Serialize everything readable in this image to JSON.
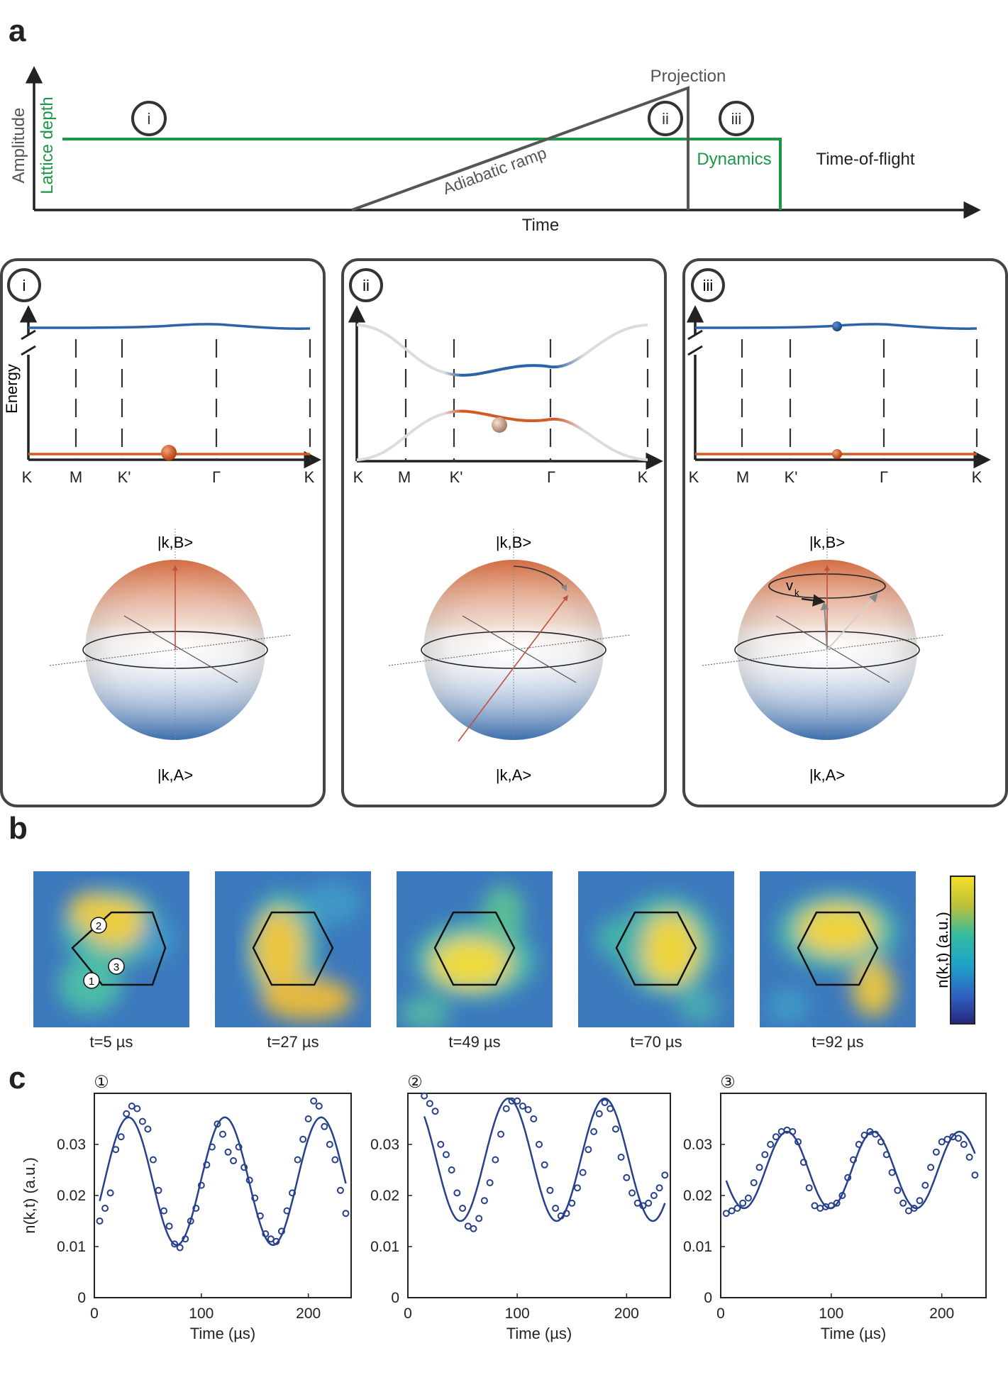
{
  "panel_labels": {
    "a": "a",
    "b": "b",
    "c": "c"
  },
  "sequence": {
    "y_label_amplitude": "Amplitude",
    "y_label_lattice": "Lattice depth",
    "x_label": "Time",
    "projection": "Projection",
    "ramp": "Adiabatic ramp",
    "dynamics": "Dynamics",
    "tof": "Time-of-flight",
    "steps": [
      "i",
      "ii",
      "iii"
    ],
    "colors": {
      "lattice": "#1e9647",
      "ramp": "#555555"
    }
  },
  "band_panels": [
    {
      "id": "i",
      "ticks": [
        "K",
        "M",
        "K'",
        "Γ",
        "K"
      ],
      "energy_label": "Energy",
      "ket_top": "|k,B>",
      "ket_bottom": "|k,A>"
    },
    {
      "id": "ii",
      "ticks": [
        "K",
        "M",
        "K'",
        "Γ",
        "K"
      ],
      "ket_top": "|k,B>",
      "ket_bottom": "|k,A>"
    },
    {
      "id": "iii",
      "ticks": [
        "K",
        "M",
        "K'",
        "Γ",
        "K"
      ],
      "velocity_label": "v",
      "velocity_sub": "k",
      "ket_top": "|k,B>",
      "ket_bottom": "|k,A>"
    }
  ],
  "band_colors": {
    "upper": "#2b62a8",
    "lower": "#d35a27"
  },
  "images": {
    "times": [
      "t=5 µs",
      "t=27 µs",
      "t=49 µs",
      "t=70 µs",
      "t=92 µs"
    ],
    "markers": [
      "1",
      "2",
      "3"
    ],
    "colorbar_label": "n(k,t) (a.u.)",
    "colorbar_label_bold": "k"
  },
  "chart_data": [
    {
      "type": "scatter",
      "title": "①",
      "xlabel": "Time (µs)",
      "ylabel": "n(k,t) (a.u.)",
      "xlim": [
        0,
        240
      ],
      "ylim": [
        0,
        0.04
      ],
      "xticks": [
        "0",
        "100",
        "200"
      ],
      "yticks": [
        "0",
        "0.01",
        "0.02",
        "0.03"
      ],
      "fit": {
        "mean": 0.0228,
        "amp": 0.0125,
        "period": 90,
        "phase_peak": 32
      },
      "points": [
        [
          5,
          0.015
        ],
        [
          10,
          0.0175
        ],
        [
          15,
          0.0205
        ],
        [
          20,
          0.029
        ],
        [
          25,
          0.0315
        ],
        [
          30,
          0.036
        ],
        [
          35,
          0.0375
        ],
        [
          40,
          0.037
        ],
        [
          45,
          0.0345
        ],
        [
          50,
          0.033
        ],
        [
          55,
          0.027
        ],
        [
          60,
          0.021
        ],
        [
          65,
          0.017
        ],
        [
          70,
          0.014
        ],
        [
          75,
          0.0105
        ],
        [
          80,
          0.0098
        ],
        [
          85,
          0.0115
        ],
        [
          90,
          0.015
        ],
        [
          95,
          0.0175
        ],
        [
          100,
          0.022
        ],
        [
          105,
          0.026
        ],
        [
          110,
          0.0295
        ],
        [
          115,
          0.034
        ],
        [
          120,
          0.032
        ],
        [
          125,
          0.0285
        ],
        [
          130,
          0.0268
        ],
        [
          135,
          0.0295
        ],
        [
          140,
          0.0255
        ],
        [
          145,
          0.023
        ],
        [
          150,
          0.0195
        ],
        [
          155,
          0.016
        ],
        [
          160,
          0.0125
        ],
        [
          165,
          0.0115
        ],
        [
          170,
          0.011
        ],
        [
          175,
          0.013
        ],
        [
          180,
          0.017
        ],
        [
          185,
          0.0205
        ],
        [
          190,
          0.027
        ],
        [
          195,
          0.031
        ],
        [
          200,
          0.035
        ],
        [
          205,
          0.0385
        ],
        [
          210,
          0.0375
        ],
        [
          215,
          0.0335
        ],
        [
          220,
          0.03
        ],
        [
          225,
          0.027
        ],
        [
          230,
          0.021
        ],
        [
          235,
          0.0165
        ]
      ]
    },
    {
      "type": "scatter",
      "title": "②",
      "xlabel": "Time (µs)",
      "ylabel": "",
      "xlim": [
        0,
        240
      ],
      "ylim": [
        0,
        0.04
      ],
      "xticks": [
        "0",
        "100",
        "200"
      ],
      "yticks": [
        "0",
        "0.01",
        "0.02",
        "0.03"
      ],
      "fit": {
        "mean": 0.027,
        "amp": 0.012,
        "period": 88,
        "phase_peak": 92
      },
      "points": [
        [
          15,
          0.0395
        ],
        [
          20,
          0.038
        ],
        [
          25,
          0.0365
        ],
        [
          30,
          0.03
        ],
        [
          35,
          0.028
        ],
        [
          40,
          0.025
        ],
        [
          45,
          0.0205
        ],
        [
          50,
          0.0175
        ],
        [
          55,
          0.014
        ],
        [
          60,
          0.0135
        ],
        [
          65,
          0.0155
        ],
        [
          70,
          0.019
        ],
        [
          75,
          0.0225
        ],
        [
          80,
          0.027
        ],
        [
          85,
          0.032
        ],
        [
          90,
          0.037
        ],
        [
          95,
          0.0385
        ],
        [
          100,
          0.0385
        ],
        [
          105,
          0.0375
        ],
        [
          110,
          0.0368
        ],
        [
          115,
          0.035
        ],
        [
          120,
          0.03
        ],
        [
          125,
          0.026
        ],
        [
          130,
          0.021
        ],
        [
          135,
          0.0175
        ],
        [
          140,
          0.016
        ],
        [
          145,
          0.0165
        ],
        [
          150,
          0.0185
        ],
        [
          155,
          0.0215
        ],
        [
          160,
          0.0245
        ],
        [
          165,
          0.029
        ],
        [
          170,
          0.0325
        ],
        [
          175,
          0.036
        ],
        [
          180,
          0.0382
        ],
        [
          185,
          0.037
        ],
        [
          190,
          0.033
        ],
        [
          195,
          0.0275
        ],
        [
          200,
          0.0235
        ],
        [
          205,
          0.0205
        ],
        [
          210,
          0.0185
        ],
        [
          215,
          0.018
        ],
        [
          220,
          0.0185
        ],
        [
          225,
          0.02
        ],
        [
          230,
          0.0215
        ],
        [
          235,
          0.024
        ]
      ]
    },
    {
      "type": "scatter",
      "title": "③",
      "xlabel": "Time (µs)",
      "ylabel": "",
      "xlim": [
        0,
        240
      ],
      "ylim": [
        0,
        0.04
      ],
      "xticks": [
        "0",
        "100",
        "200"
      ],
      "yticks": [
        "0",
        "0.01",
        "0.02",
        "0.03"
      ],
      "fit": {
        "mean": 0.025,
        "amp": 0.0075,
        "period": 78,
        "phase_peak": 60
      },
      "points": [
        [
          5,
          0.0165
        ],
        [
          10,
          0.017
        ],
        [
          15,
          0.0175
        ],
        [
          20,
          0.0185
        ],
        [
          25,
          0.0195
        ],
        [
          30,
          0.0225
        ],
        [
          35,
          0.0255
        ],
        [
          40,
          0.028
        ],
        [
          45,
          0.03
        ],
        [
          50,
          0.0315
        ],
        [
          55,
          0.0325
        ],
        [
          60,
          0.0328
        ],
        [
          65,
          0.0325
        ],
        [
          70,
          0.0305
        ],
        [
          75,
          0.0265
        ],
        [
          80,
          0.0215
        ],
        [
          85,
          0.018
        ],
        [
          90,
          0.0175
        ],
        [
          95,
          0.0178
        ],
        [
          100,
          0.018
        ],
        [
          105,
          0.0185
        ],
        [
          110,
          0.02
        ],
        [
          115,
          0.0235
        ],
        [
          120,
          0.027
        ],
        [
          125,
          0.03
        ],
        [
          130,
          0.0318
        ],
        [
          135,
          0.0325
        ],
        [
          140,
          0.032
        ],
        [
          145,
          0.0305
        ],
        [
          150,
          0.028
        ],
        [
          155,
          0.0245
        ],
        [
          160,
          0.021
        ],
        [
          165,
          0.0185
        ],
        [
          170,
          0.017
        ],
        [
          175,
          0.0175
        ],
        [
          180,
          0.019
        ],
        [
          185,
          0.022
        ],
        [
          190,
          0.0255
        ],
        [
          195,
          0.0285
        ],
        [
          200,
          0.0305
        ],
        [
          205,
          0.031
        ],
        [
          210,
          0.0315
        ],
        [
          215,
          0.0312
        ],
        [
          220,
          0.03
        ],
        [
          225,
          0.0275
        ],
        [
          230,
          0.024
        ]
      ]
    }
  ]
}
